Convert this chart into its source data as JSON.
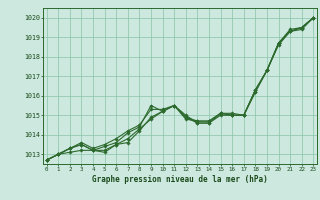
{
  "title": "Graphe pression niveau de la mer (hPa)",
  "ylabel_range": [
    1012.5,
    1020.5
  ],
  "yticks": [
    1013,
    1014,
    1015,
    1016,
    1017,
    1018,
    1019,
    1020
  ],
  "xticks": [
    0,
    1,
    2,
    3,
    4,
    5,
    6,
    7,
    8,
    9,
    10,
    11,
    12,
    13,
    14,
    15,
    16,
    17,
    18,
    19,
    20,
    21,
    22,
    23
  ],
  "background_color": "#cce8df",
  "plot_bg_color": "#cce8df",
  "grid_color": "#88c4a8",
  "line_color": "#2d6a2d",
  "series": [
    [
      1012.7,
      1013.0,
      1013.1,
      1013.2,
      1013.2,
      1013.2,
      1013.5,
      1013.6,
      1014.2,
      1014.9,
      1015.2,
      1015.5,
      1014.8,
      1014.7,
      1014.7,
      1015.1,
      1015.0,
      1015.0,
      1016.2,
      1017.3,
      1018.6,
      1019.3,
      1019.4,
      1020.0
    ],
    [
      1012.7,
      1013.0,
      1013.3,
      1013.5,
      1013.2,
      1013.1,
      1013.5,
      1013.8,
      1014.3,
      1014.8,
      1015.2,
      1015.5,
      1014.9,
      1014.6,
      1014.6,
      1015.0,
      1015.0,
      1015.0,
      1016.3,
      1017.3,
      1018.7,
      1019.3,
      1019.5,
      1020.0
    ],
    [
      1012.7,
      1013.0,
      1013.3,
      1013.5,
      1013.2,
      1013.4,
      1013.6,
      1014.1,
      1014.4,
      1015.5,
      1015.2,
      1015.5,
      1015.0,
      1014.6,
      1014.6,
      1015.1,
      1015.1,
      1015.0,
      1016.2,
      1017.3,
      1018.7,
      1019.3,
      1019.5,
      1020.0
    ],
    [
      1012.7,
      1013.0,
      1013.3,
      1013.6,
      1013.3,
      1013.5,
      1013.8,
      1014.2,
      1014.5,
      1015.3,
      1015.3,
      1015.5,
      1014.9,
      1014.7,
      1014.7,
      1015.1,
      1015.0,
      1015.0,
      1016.3,
      1017.3,
      1018.7,
      1019.4,
      1019.5,
      1020.0
    ]
  ]
}
